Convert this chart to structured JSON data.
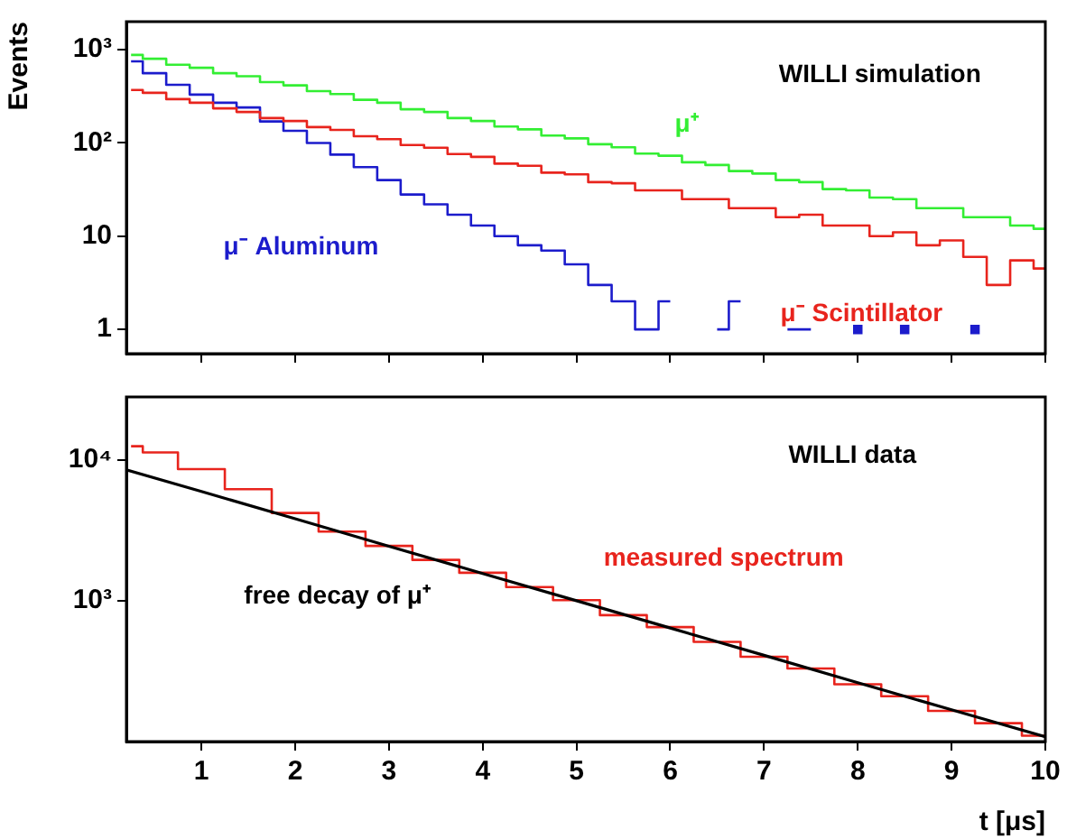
{
  "chart_data": [
    {
      "type": "step",
      "ylabel": "Events",
      "log": "y",
      "grid": false,
      "legend": false,
      "tick_labels": "y",
      "xlim": [
        0.2,
        10
      ],
      "xticks": [
        1,
        2,
        3,
        4,
        5,
        6,
        7,
        8,
        9,
        10
      ],
      "ylim": [
        0.55,
        2000
      ],
      "yticks": [
        1,
        10,
        {
          "value": 100,
          "label": "10²"
        },
        {
          "value": 1000,
          "label": "10³"
        }
      ],
      "x": [
        0.25,
        0.5,
        0.75,
        1,
        1.25,
        1.5,
        1.75,
        2,
        2.25,
        2.5,
        2.75,
        3,
        3.25,
        3.5,
        3.75,
        4,
        4.25,
        4.5,
        4.75,
        5,
        5.25,
        5.5,
        5.75,
        6,
        6.25,
        6.5,
        6.75,
        7,
        7.25,
        7.5,
        7.75,
        8,
        8.25,
        8.5,
        8.75,
        9,
        9.25,
        9.5,
        9.75,
        10
      ],
      "annotations": [
        "WILLI simulation"
      ],
      "series": [
        {
          "name": "μ⁺",
          "color": "#33ee33",
          "values": [
            880,
            800,
            690,
            640,
            560,
            520,
            450,
            415,
            360,
            335,
            290,
            270,
            230,
            215,
            185,
            172,
            150,
            140,
            120,
            112,
            97,
            90,
            77,
            73,
            62,
            58,
            50,
            47,
            40,
            38,
            32,
            31,
            26,
            25,
            20,
            20,
            16,
            16,
            13,
            12
          ]
        },
        {
          "name": "μ⁻ Scintillator",
          "color": "#e8241d",
          "values": [
            370,
            345,
            295,
            270,
            235,
            215,
            185,
            172,
            148,
            138,
            118,
            110,
            95,
            89,
            76,
            71,
            60,
            57,
            48,
            46,
            38,
            37,
            31,
            31,
            25,
            25,
            20,
            20,
            16,
            17,
            13,
            13,
            10,
            11,
            8,
            9,
            6,
            3,
            5.5,
            4.5
          ]
        },
        {
          "name": "μ⁻ Aluminum",
          "color": "#1c1ccc",
          "values": [
            750,
            560,
            420,
            330,
            270,
            240,
            170,
            135,
            100,
            75,
            55,
            40,
            28,
            22,
            17,
            13,
            10,
            8,
            7,
            5,
            3,
            2,
            1,
            2,
            null,
            1,
            2,
            null,
            1,
            1,
            null,
            1,
            null,
            1,
            null,
            null,
            1,
            null,
            null,
            null
          ]
        }
      ]
    },
    {
      "type": "step",
      "xlabel": "t [μs]",
      "log": "y",
      "grid": false,
      "legend": false,
      "xlim": [
        0.2,
        10
      ],
      "xticks": [
        1,
        2,
        3,
        4,
        5,
        6,
        7,
        8,
        9,
        10
      ],
      "ylim": [
        100,
        28000
      ],
      "yticks": [
        {
          "value": 1000,
          "label": "10³"
        },
        {
          "value": 10000,
          "label": "10⁴"
        }
      ],
      "annotations": [
        "WILLI data"
      ],
      "series": [
        {
          "name": "measured spectrum",
          "color": "#e8241d",
          "x": [
            0.25,
            0.5,
            1,
            1.5,
            2,
            2.5,
            3,
            3.5,
            4,
            4.5,
            5,
            5.5,
            6,
            6.5,
            7,
            7.5,
            8,
            8.5,
            9,
            9.5,
            10
          ],
          "values": [
            12500,
            11300,
            8600,
            6200,
            4200,
            3100,
            2450,
            1950,
            1580,
            1250,
            1010,
            790,
            650,
            510,
            400,
            330,
            255,
            210,
            165,
            135,
            110
          ]
        },
        {
          "name": "free decay of μ⁺",
          "type": "line",
          "color": "#000000",
          "x": [
            0.2,
            1,
            2,
            3,
            4,
            5,
            6,
            7,
            8,
            9,
            10
          ],
          "values": [
            8500,
            5970,
            3820,
            2440,
            1560,
            1000,
            640,
            410,
            262,
            168,
            108
          ]
        }
      ]
    }
  ]
}
